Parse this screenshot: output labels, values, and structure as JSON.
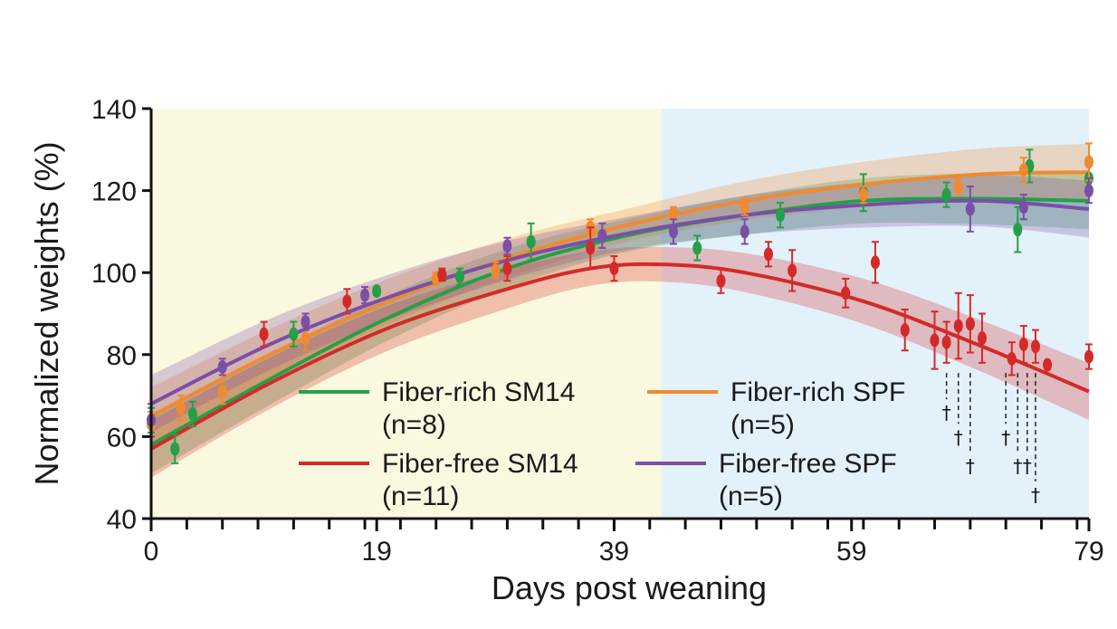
{
  "chart_data": {
    "type": "line",
    "title": "",
    "xlabel": "Days post weaning",
    "ylabel": "Normalized weights (%)",
    "xlim": [
      0,
      79
    ],
    "ylim": [
      40,
      140
    ],
    "x_ticks": [
      0,
      19,
      39,
      59,
      79
    ],
    "y_ticks": [
      40,
      60,
      80,
      100,
      120,
      140
    ],
    "background_regions": [
      {
        "x_start": 0,
        "x_end": 43,
        "color": "#fbf8e0"
      },
      {
        "x_start": 43,
        "x_end": 79,
        "color": "#e3f1fb"
      }
    ],
    "series": [
      {
        "name": "Fiber-rich SM14",
        "n_label": "(n=8)",
        "color": "#23a048",
        "fit": [
          [
            0,
            58
          ],
          [
            10,
            74
          ],
          [
            20,
            89
          ],
          [
            30,
            101
          ],
          [
            40,
            109
          ],
          [
            50,
            114
          ],
          [
            60,
            117.5
          ],
          [
            70,
            118
          ],
          [
            79,
            117.5
          ]
        ],
        "points": [
          [
            0,
            64,
            3
          ],
          [
            2,
            57,
            3.5
          ],
          [
            3.5,
            65.5,
            3
          ],
          [
            12,
            85,
            3
          ],
          [
            19,
            95.5,
            1
          ],
          [
            26,
            99,
            2
          ],
          [
            32,
            107.5,
            4.5
          ],
          [
            46,
            106,
            3
          ],
          [
            53,
            114,
            3
          ],
          [
            60,
            119.5,
            4.5
          ],
          [
            67,
            119,
            3
          ],
          [
            73,
            110.5,
            5.5
          ],
          [
            74,
            126,
            4
          ],
          [
            79,
            123,
            3
          ]
        ]
      },
      {
        "name": "Fiber-rich SPF",
        "n_label": "(n=5)",
        "color": "#f08a30",
        "fit": [
          [
            0,
            65
          ],
          [
            10,
            80
          ],
          [
            20,
            93
          ],
          [
            30,
            103.5
          ],
          [
            40,
            111.5
          ],
          [
            50,
            117.5
          ],
          [
            60,
            121.5
          ],
          [
            70,
            124
          ],
          [
            79,
            124.5
          ]
        ],
        "points": [
          [
            0,
            63,
            3
          ],
          [
            2.5,
            67,
            3
          ],
          [
            6,
            71,
            3
          ],
          [
            13,
            84,
            3
          ],
          [
            24,
            98.5,
            1.5
          ],
          [
            29,
            100.5,
            2
          ],
          [
            37,
            111,
            2
          ],
          [
            44,
            114.5,
            1.5
          ],
          [
            50,
            116,
            2
          ],
          [
            60,
            119,
            2
          ],
          [
            68,
            121,
            2
          ],
          [
            73.5,
            125,
            3
          ],
          [
            79,
            127,
            4.5
          ]
        ]
      },
      {
        "name": "Fiber-free SM14",
        "n_label": "(n=11)",
        "color": "#d42a27",
        "fit": [
          [
            0,
            57
          ],
          [
            10,
            73
          ],
          [
            20,
            86.5
          ],
          [
            30,
            96
          ],
          [
            37,
            101
          ],
          [
            43,
            102
          ],
          [
            50,
            100
          ],
          [
            60,
            93
          ],
          [
            70,
            82
          ],
          [
            79,
            71
          ]
        ],
        "points": [
          [
            9.5,
            85,
            3
          ],
          [
            16.5,
            93,
            3
          ],
          [
            24.5,
            99.5,
            1.5
          ],
          [
            30,
            101,
            3
          ],
          [
            37,
            106,
            5
          ],
          [
            39,
            101,
            3
          ],
          [
            48,
            98,
            3
          ],
          [
            52,
            104.5,
            3
          ],
          [
            54,
            100.5,
            5
          ],
          [
            58.5,
            95,
            3.5
          ],
          [
            61,
            102.5,
            5
          ],
          [
            63.5,
            86,
            5
          ],
          [
            66,
            83.5,
            7
          ],
          [
            67,
            83,
            5
          ],
          [
            68,
            87,
            8
          ],
          [
            69,
            87.5,
            7
          ],
          [
            70,
            84,
            6
          ],
          [
            72.5,
            79,
            4
          ],
          [
            73.5,
            82.5,
            4.5
          ],
          [
            74.5,
            82,
            4
          ],
          [
            75.5,
            77.5,
            1
          ],
          [
            79,
            79.5,
            3
          ]
        ]
      },
      {
        "name": "Fiber-free SPF",
        "n_label": "(n=5)",
        "color": "#7a4fa7",
        "fit": [
          [
            0,
            68
          ],
          [
            10,
            82.5
          ],
          [
            20,
            94
          ],
          [
            30,
            103
          ],
          [
            40,
            109.5
          ],
          [
            50,
            114
          ],
          [
            60,
            116.5
          ],
          [
            70,
            117.5
          ],
          [
            79,
            115.5
          ]
        ],
        "points": [
          [
            0,
            64,
            4
          ],
          [
            6,
            77,
            2
          ],
          [
            13,
            88,
            2
          ],
          [
            18,
            94.5,
            2
          ],
          [
            30,
            106.5,
            2
          ],
          [
            38,
            109,
            3
          ],
          [
            44,
            110,
            3
          ],
          [
            50,
            110,
            3
          ],
          [
            69,
            115.5,
            5.5
          ],
          [
            73.5,
            116,
            3
          ],
          [
            79,
            120,
            3
          ]
        ]
      }
    ],
    "death_markers": [
      {
        "x": 67,
        "y_mark": 66,
        "symbol": "†"
      },
      {
        "x": 68,
        "y_mark": 60,
        "symbol": "†"
      },
      {
        "x": 69,
        "y_mark": 53,
        "symbol": "†"
      },
      {
        "x": 72,
        "y_mark": 60,
        "symbol": "†"
      },
      {
        "x": 73,
        "y_mark": 53,
        "symbol": "†"
      },
      {
        "x": 73.8,
        "y_mark": 53,
        "symbol": "†"
      },
      {
        "x": 74.5,
        "y_mark": 46,
        "symbol": "†"
      }
    ],
    "legend": {
      "placement": "bottom-center"
    }
  }
}
